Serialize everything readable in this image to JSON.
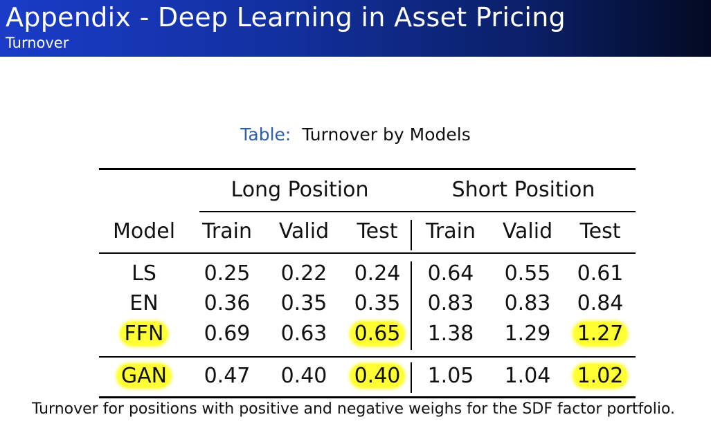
{
  "header": {
    "title": "Appendix - Deep Learning in Asset Pricing",
    "subtitle": "Turnover"
  },
  "table": {
    "caption_label": "Table:",
    "caption_text": "Turnover by Models",
    "group_headers": [
      "Long Position",
      "Short Position"
    ],
    "columns": [
      "Model",
      "Train",
      "Valid",
      "Test",
      "Train",
      "Valid",
      "Test"
    ],
    "rows": [
      {
        "model": "LS",
        "values": [
          "0.25",
          "0.22",
          "0.24",
          "0.64",
          "0.55",
          "0.61"
        ]
      },
      {
        "model": "EN",
        "values": [
          "0.36",
          "0.35",
          "0.35",
          "0.83",
          "0.83",
          "0.84"
        ]
      },
      {
        "model": "FFN",
        "values": [
          "0.69",
          "0.63",
          "0.65",
          "1.38",
          "1.29",
          "1.27"
        ]
      },
      {
        "model": "GAN",
        "values": [
          "0.47",
          "0.40",
          "0.40",
          "1.05",
          "1.04",
          "1.02"
        ]
      }
    ],
    "highlight_color": "#ffff33"
  },
  "footnote": "Turnover for positions with positive and negative weighs for the SDF factor portfolio."
}
